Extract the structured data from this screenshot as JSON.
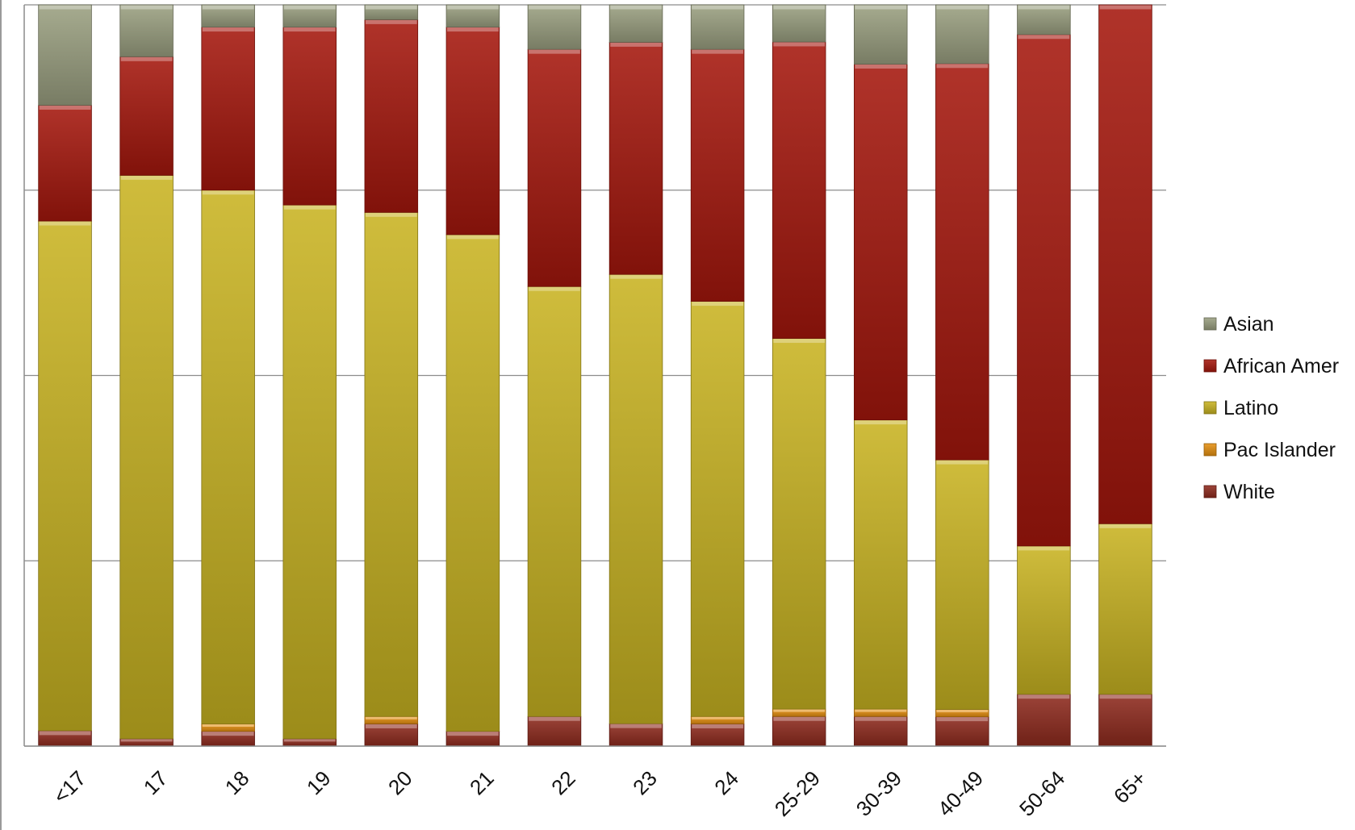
{
  "chart_data": {
    "type": "bar",
    "stacked": true,
    "normalized": true,
    "title": "",
    "xlabel": "",
    "ylabel": "",
    "ylim": [
      0,
      100
    ],
    "grid": true,
    "legend_position": "right",
    "categories": [
      "<17",
      "17",
      "18",
      "19",
      "20",
      "21",
      "22",
      "23",
      "24",
      "25-29",
      "30-39",
      "40-49",
      "50-64",
      "65+"
    ],
    "series": [
      {
        "name": "White",
        "color": "#8e2a1e",
        "values": [
          2,
          1,
          2,
          1,
          3,
          2,
          4,
          3,
          3,
          4,
          4,
          4,
          7,
          7
        ]
      },
      {
        "name": "Pac Islander",
        "color": "#e69010",
        "values": [
          0,
          0,
          1,
          0,
          1,
          0,
          0,
          0,
          1,
          1,
          1,
          1,
          0,
          0
        ]
      },
      {
        "name": "Latino",
        "color": "#c8b321",
        "values": [
          66,
          76,
          72,
          72,
          68,
          67,
          58,
          60,
          56,
          50,
          39,
          34,
          20,
          23
        ]
      },
      {
        "name": "African Amer",
        "color": "#a5170d",
        "values": [
          15,
          16,
          22,
          24,
          26,
          28,
          32,
          31,
          34,
          40,
          48,
          54,
          69,
          70
        ]
      },
      {
        "name": "Asian",
        "color": "#9a9f80",
        "values": [
          13,
          7,
          3,
          3,
          2,
          3,
          6,
          5,
          6,
          5,
          8,
          8,
          4,
          0
        ]
      }
    ]
  }
}
